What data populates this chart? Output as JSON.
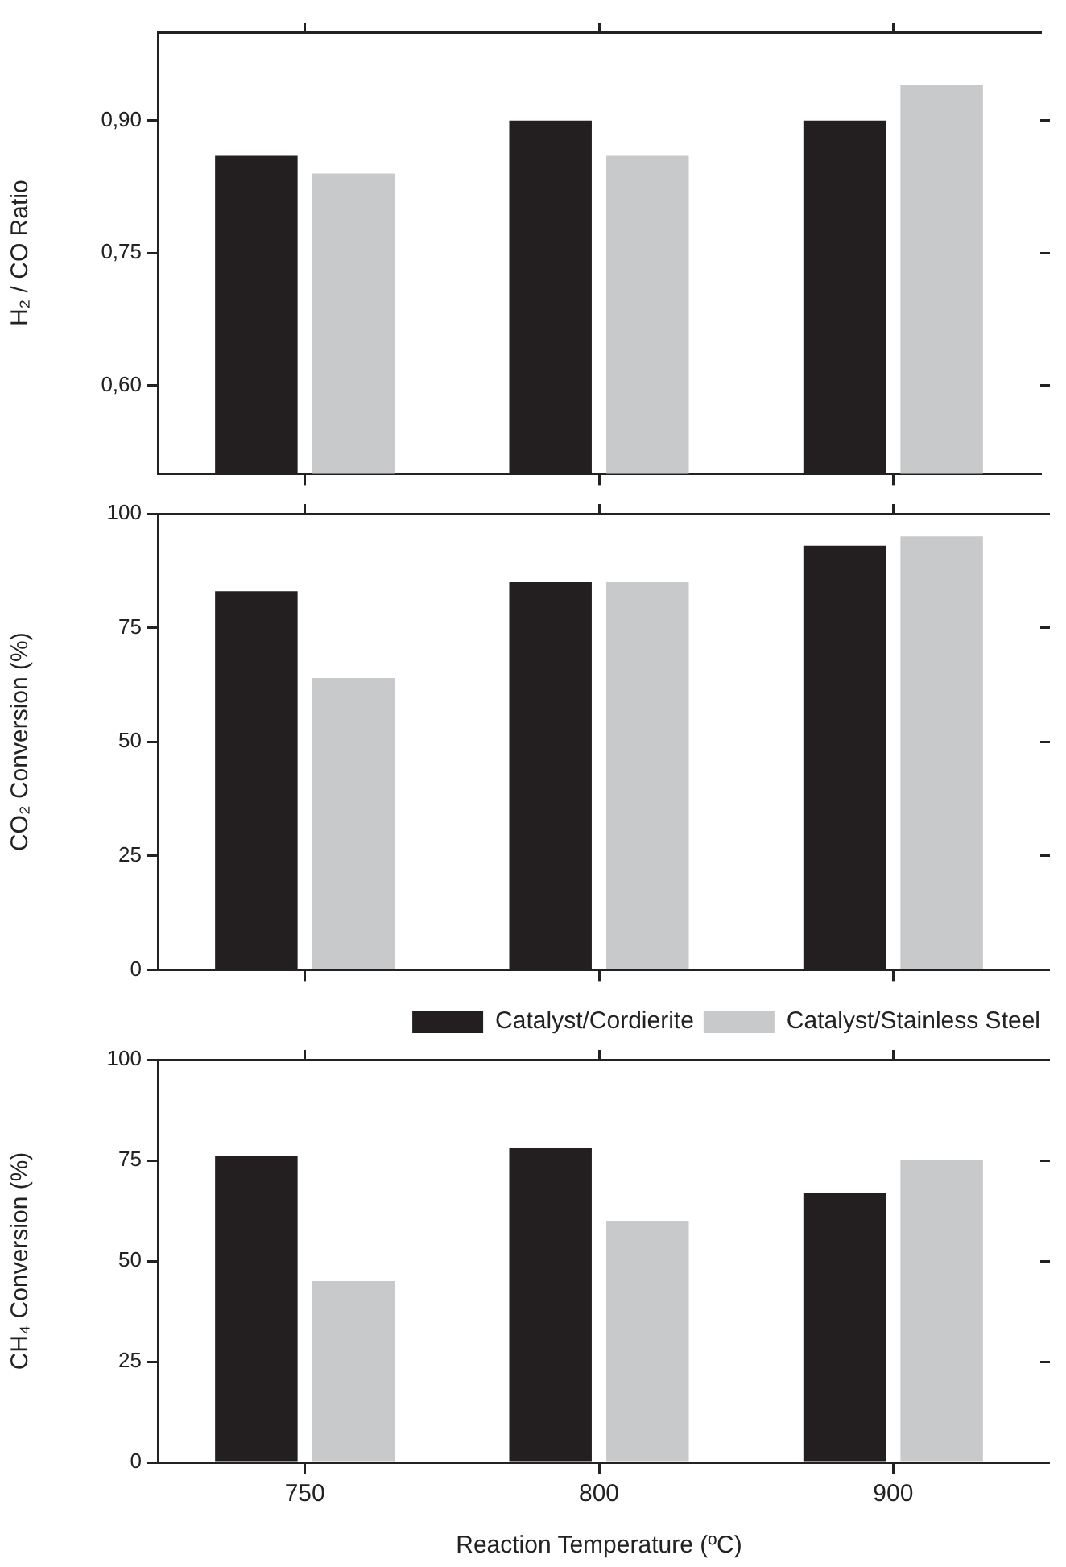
{
  "chart_data": [
    {
      "type": "bar",
      "categories": [
        "750",
        "800",
        "900"
      ],
      "ylabel": "H₂ / CO Ratio",
      "ylim": [
        0.5,
        1.0
      ],
      "yticks": [
        {
          "value": 0.6,
          "label": "0,60"
        },
        {
          "value": 0.75,
          "label": "0,75"
        },
        {
          "value": 0.9,
          "label": "0,90"
        }
      ],
      "tick_labels": "y",
      "series": [
        {
          "color": "#231f20",
          "values": [
            0.86,
            0.9,
            0.9
          ]
        },
        {
          "color": "#c8c9cb",
          "values": [
            0.84,
            0.86,
            0.94
          ]
        }
      ]
    },
    {
      "type": "bar",
      "categories": [
        "750",
        "800",
        "900"
      ],
      "ylabel": "CO₂ Conversion (%)",
      "ylim": [
        0,
        100
      ],
      "yticks": [
        0,
        25,
        50,
        75,
        100
      ],
      "tick_labels": "y",
      "series": [
        {
          "color": "#231f20",
          "values": [
            83,
            85,
            93
          ]
        },
        {
          "color": "#c8c9cb",
          "values": [
            64,
            85,
            95
          ]
        }
      ]
    },
    {
      "type": "bar",
      "categories": [
        "750",
        "800",
        "900"
      ],
      "xlabel": "Reaction Temperature (ºC)",
      "ylabel": "CH₄ Conversion (%)",
      "ylim": [
        0,
        100
      ],
      "yticks": [
        0,
        25,
        50,
        75,
        100
      ],
      "legend": "top right",
      "series": [
        {
          "name": "Catalyst/Cordierite",
          "color": "#231f20",
          "values": [
            76,
            78,
            67
          ]
        },
        {
          "name": "Catalyst/Stainless Steel",
          "color": "#c8c9cb",
          "values": [
            45,
            60,
            75
          ]
        }
      ]
    }
  ]
}
